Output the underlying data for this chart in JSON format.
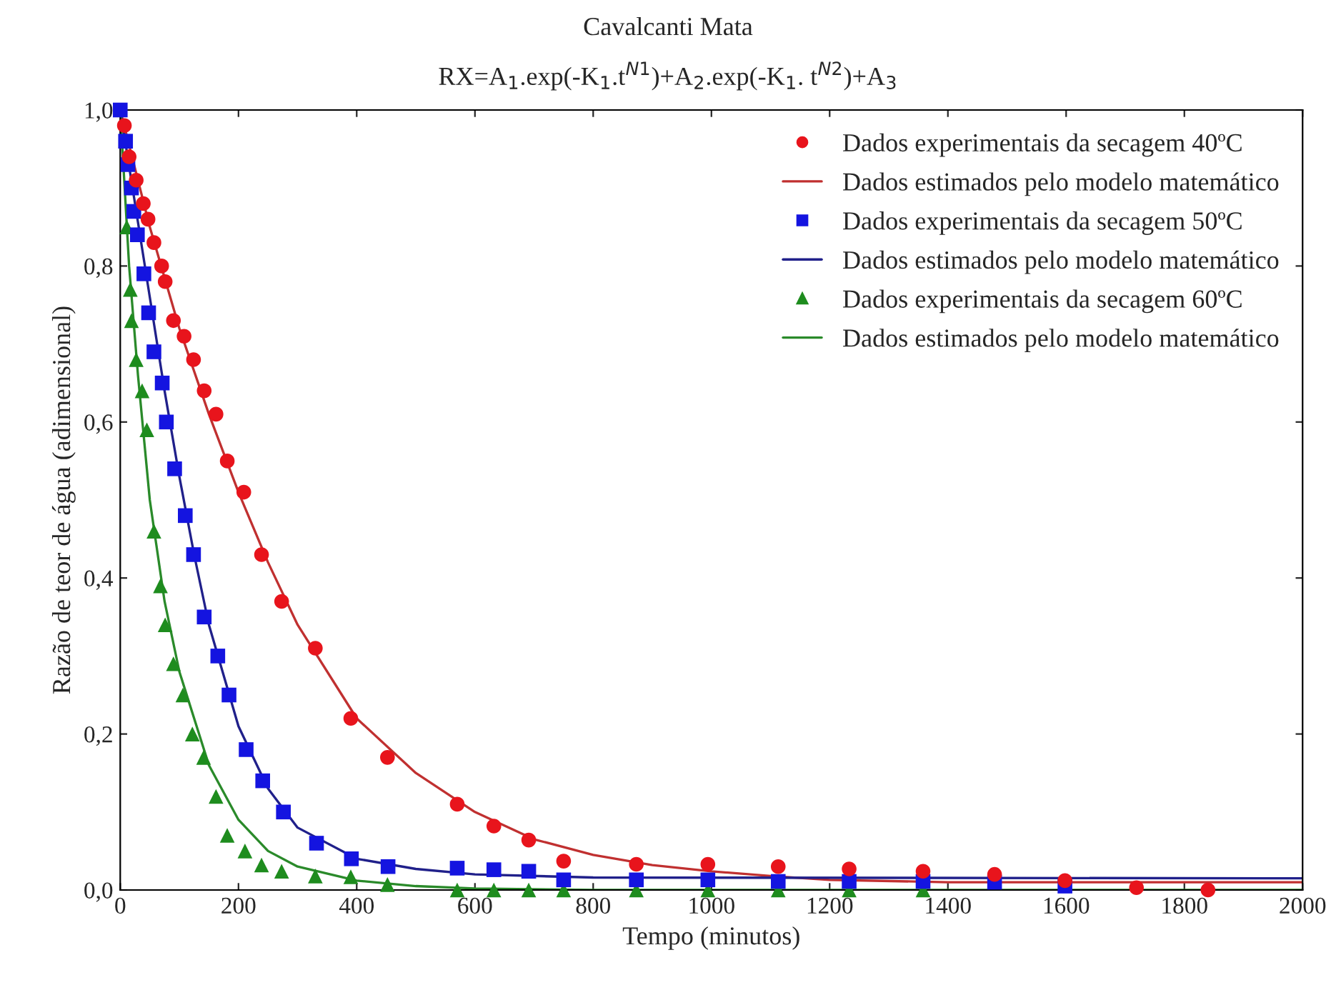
{
  "chart_data": {
    "type": "scatter",
    "title": "Cavalcanti Mata",
    "subtitle": "RX=A$_{1}$.exp(-K$_{1}$.t$^{N1}$)+A$_{2}$.exp(-K$_{1}$. t$^{N2}$)+A$_{3}$",
    "xlabel": "Tempo (minutos)",
    "ylabel": "Razão de teor de água (adimensional)",
    "xlim": [
      0,
      2000
    ],
    "xticks": [
      0,
      200,
      400,
      600,
      800,
      1000,
      1200,
      1400,
      1600,
      1800,
      2000
    ],
    "ylim": [
      0,
      1
    ],
    "yticks": [
      {
        "value": 0,
        "label": "0,0"
      },
      {
        "value": 0.2,
        "label": "0,2"
      },
      {
        "value": 0.4,
        "label": "0,4"
      },
      {
        "value": 0.6,
        "label": "0,6"
      },
      {
        "value": 0.8,
        "label": "0,8"
      },
      {
        "value": 1,
        "label": "1,0"
      }
    ],
    "grid": false,
    "legend": "top right",
    "series": [
      {
        "name": "Dados experimentais da secagem 40ºC",
        "marker": "circle",
        "color": "#e8141c",
        "x": [
          7,
          15,
          27,
          39,
          47,
          57,
          70,
          76,
          90,
          108,
          124,
          142,
          162,
          181,
          209,
          239,
          273,
          330,
          390,
          452,
          570,
          632,
          691,
          750,
          873,
          994,
          1113,
          1233,
          1358,
          1479,
          1598,
          1719,
          1840
        ],
        "values": [
          0.98,
          0.94,
          0.91,
          0.88,
          0.86,
          0.83,
          0.8,
          0.78,
          0.73,
          0.71,
          0.68,
          0.64,
          0.61,
          0.55,
          0.51,
          0.43,
          0.37,
          0.31,
          0.22,
          0.17,
          0.11,
          0.082,
          0.064,
          0.037,
          0.033,
          0.033,
          0.03,
          0.027,
          0.024,
          0.02,
          0.012,
          0.003,
          0.0
        ]
      },
      {
        "name": "Dados estimados pelo modelo matemático",
        "type": "line",
        "color": "#c03030",
        "x": [
          0,
          50,
          100,
          150,
          200,
          250,
          300,
          400,
          500,
          600,
          700,
          800,
          900,
          1000,
          1100,
          1200,
          1400,
          2000
        ],
        "values": [
          1.0,
          0.85,
          0.72,
          0.61,
          0.51,
          0.42,
          0.34,
          0.22,
          0.15,
          0.1,
          0.065,
          0.045,
          0.032,
          0.024,
          0.018,
          0.013,
          0.01,
          0.01
        ]
      },
      {
        "name": "Dados experimentais da secagem 50ºC",
        "marker": "square",
        "color": "#1414e0",
        "x": [
          0,
          9,
          13,
          19,
          23,
          29,
          40,
          48,
          57,
          71,
          78,
          92,
          110,
          124,
          142,
          165,
          184,
          213,
          241,
          276,
          332,
          391,
          453,
          570,
          632,
          691,
          750,
          873,
          994,
          1113,
          1233,
          1358,
          1479,
          1598
        ],
        "values": [
          1.0,
          0.96,
          0.93,
          0.9,
          0.87,
          0.84,
          0.79,
          0.74,
          0.69,
          0.65,
          0.6,
          0.54,
          0.48,
          0.43,
          0.35,
          0.3,
          0.25,
          0.18,
          0.14,
          0.1,
          0.06,
          0.04,
          0.03,
          0.028,
          0.026,
          0.024,
          0.013,
          0.013,
          0.013,
          0.011,
          0.011,
          0.011,
          0.01,
          0.005
        ]
      },
      {
        "name": "Dados estimados pelo modelo matemático",
        "type": "line",
        "color": "#20208a",
        "x": [
          0,
          25,
          50,
          75,
          100,
          125,
          150,
          200,
          250,
          300,
          400,
          500,
          600,
          800,
          2000
        ],
        "values": [
          1.0,
          0.88,
          0.76,
          0.64,
          0.53,
          0.43,
          0.34,
          0.21,
          0.13,
          0.08,
          0.04,
          0.027,
          0.02,
          0.016,
          0.015
        ]
      },
      {
        "name": "Dados experimentais da secagem 60ºC",
        "marker": "triangle",
        "color": "#1e8c1e",
        "x": [
          11,
          17,
          19,
          27,
          37,
          45,
          57,
          68,
          76,
          90,
          106,
          122,
          141,
          162,
          181,
          211,
          239,
          273,
          330,
          390,
          452,
          570,
          632,
          691,
          750,
          873,
          994,
          1113,
          1233,
          1358
        ],
        "values": [
          0.85,
          0.77,
          0.73,
          0.68,
          0.64,
          0.59,
          0.46,
          0.39,
          0.34,
          0.29,
          0.25,
          0.2,
          0.17,
          0.12,
          0.07,
          0.05,
          0.032,
          0.024,
          0.018,
          0.017,
          0.007,
          0.0,
          0.0,
          0.0,
          0.0,
          0.0,
          0.0,
          0.0,
          0.0,
          0.0
        ]
      },
      {
        "name": "Dados estimados pelo modelo matemático",
        "type": "line",
        "color": "#2a8a2a",
        "x": [
          0,
          15,
          30,
          50,
          75,
          100,
          150,
          200,
          250,
          300,
          400,
          500,
          600,
          800,
          2000
        ],
        "values": [
          1.0,
          0.8,
          0.66,
          0.5,
          0.37,
          0.28,
          0.16,
          0.09,
          0.05,
          0.03,
          0.012,
          0.005,
          0.002,
          0.0,
          0.0
        ]
      }
    ]
  }
}
